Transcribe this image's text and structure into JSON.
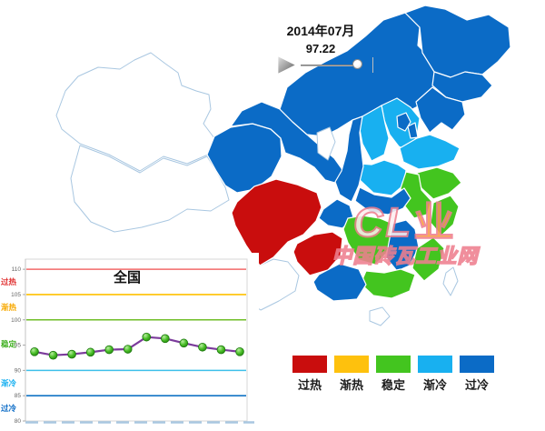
{
  "header": {
    "date": "2014年07月",
    "value": "97.22"
  },
  "controls": {
    "play_icon": "play",
    "slider_position": "end"
  },
  "watermark": {
    "line1_latin": "CL",
    "line1_glyph": "业",
    "line2": "中国砖瓦工业网"
  },
  "legend": {
    "items": [
      {
        "label": "过热",
        "color": "#C90D0D"
      },
      {
        "label": "渐热",
        "color": "#FEC10D"
      },
      {
        "label": "稳定",
        "color": "#43C51F"
      },
      {
        "label": "渐冷",
        "color": "#18B0F0"
      },
      {
        "label": "过冷",
        "color": "#0B6BC6"
      }
    ]
  },
  "chart_data": {
    "type": "line",
    "title": "全国",
    "values": [
      93.7,
      93.0,
      93.2,
      93.6,
      94.1,
      94.2,
      96.6,
      96.3,
      95.4,
      94.6,
      94.1,
      93.7
    ],
    "ylim": [
      80,
      112
    ],
    "yticks": [
      80,
      85,
      90,
      95,
      100,
      105,
      110
    ],
    "reference_lines": [
      {
        "value": 110,
        "label": "过热",
        "color": "#F26A6A"
      },
      {
        "value": 105,
        "label": "渐热",
        "color": "#FFC000"
      },
      {
        "value": 100,
        "label": "稳定",
        "color": "#6FBE27"
      },
      {
        "value": 90,
        "label": "渐冷",
        "color": "#3EC0EA"
      },
      {
        "value": 85,
        "label": "过冷",
        "color": "#1273C4"
      }
    ],
    "zone_labels": [
      {
        "label": "过热",
        "value": 107.5,
        "color": "#E03030"
      },
      {
        "label": "渐热",
        "value": 102.5,
        "color": "#F7A800"
      },
      {
        "label": "稳定",
        "value": 95.2,
        "color": "#3FAF1F"
      },
      {
        "label": "渐冷",
        "value": 87.5,
        "color": "#18B0F0"
      },
      {
        "label": "过冷",
        "value": 82.5,
        "color": "#0B6BC6"
      }
    ],
    "line_color": "#7B3B9B",
    "marker_color": "#3FBF23",
    "grid": false,
    "legend_position": "none"
  },
  "map": {
    "status_colors": {
      "过热": "#C90D0D",
      "渐热": "#FEC10D",
      "稳定": "#43C51F",
      "渐冷": "#18B0F0",
      "过冷": "#0B6BC6",
      "无数据": "#FFFFFF"
    },
    "regions": [
      {
        "id": "xinjiang",
        "name": "新疆",
        "status": "无数据"
      },
      {
        "id": "xizang",
        "name": "西藏",
        "status": "无数据"
      },
      {
        "id": "qinghai",
        "name": "青海",
        "status": "过冷"
      },
      {
        "id": "gansu",
        "name": "甘肃",
        "status": "过冷"
      },
      {
        "id": "ningxia",
        "name": "宁夏",
        "status": "无数据"
      },
      {
        "id": "neimenggu",
        "name": "内蒙古",
        "status": "过冷"
      },
      {
        "id": "heilongjiang",
        "name": "黑龙江",
        "status": "过冷"
      },
      {
        "id": "jilin",
        "name": "吉林",
        "status": "过冷"
      },
      {
        "id": "liaoning",
        "name": "辽宁",
        "status": "过冷"
      },
      {
        "id": "beijing",
        "name": "北京",
        "status": "过冷"
      },
      {
        "id": "tianjin",
        "name": "天津",
        "status": "过冷"
      },
      {
        "id": "hebei",
        "name": "河北",
        "status": "渐冷"
      },
      {
        "id": "shanxi",
        "name": "山西",
        "status": "渐冷"
      },
      {
        "id": "shandong",
        "name": "山东",
        "status": "渐冷"
      },
      {
        "id": "henan",
        "name": "河南",
        "status": "渐冷"
      },
      {
        "id": "shaanxi",
        "name": "陕西",
        "status": "过冷"
      },
      {
        "id": "jiangsu",
        "name": "江苏",
        "status": "稳定"
      },
      {
        "id": "anhui",
        "name": "安徽",
        "status": "稳定"
      },
      {
        "id": "zhejiang",
        "name": "浙江",
        "status": "稳定"
      },
      {
        "id": "hubei",
        "name": "湖北",
        "status": "过冷"
      },
      {
        "id": "chongqing",
        "name": "重庆",
        "status": "过冷"
      },
      {
        "id": "sichuan",
        "name": "四川",
        "status": "过热"
      },
      {
        "id": "guizhou",
        "name": "贵州",
        "status": "过热"
      },
      {
        "id": "hunan",
        "name": "湖南",
        "status": "稳定"
      },
      {
        "id": "jiangxi",
        "name": "江西",
        "status": "过冷"
      },
      {
        "id": "fujian",
        "name": "福建",
        "status": "稳定"
      },
      {
        "id": "guangdong",
        "name": "广东",
        "status": "稳定"
      },
      {
        "id": "guangxi",
        "name": "广西",
        "status": "过冷"
      },
      {
        "id": "yunnan",
        "name": "云南",
        "status": "无数据"
      },
      {
        "id": "hainan",
        "name": "海南",
        "status": "无数据"
      },
      {
        "id": "taiwan",
        "name": "台湾",
        "status": "无数据"
      }
    ]
  }
}
